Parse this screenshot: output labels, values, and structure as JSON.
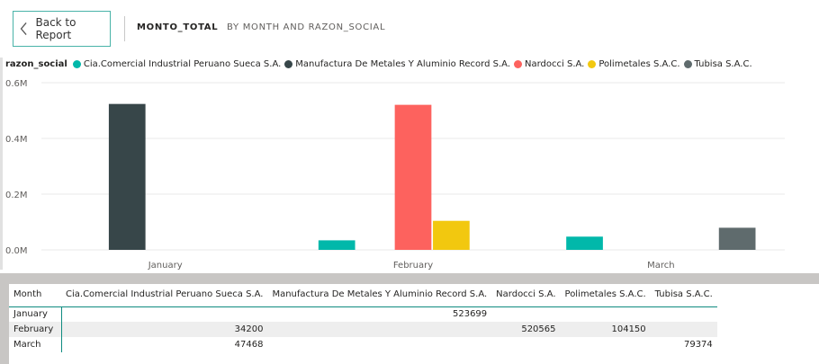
{
  "header": {
    "back_label": "Back to Report",
    "measure": "MONTO_TOTAL",
    "breakdown": "BY MONTH AND RAZON_SOCIAL"
  },
  "legend": {
    "title": "razon_social",
    "items": [
      {
        "label": "Cia.Comercial Industrial Peruano Sueca S.A.",
        "color": "#01b8aa"
      },
      {
        "label": "Manufactura De Metales Y Aluminio Record S.A.",
        "color": "#374649"
      },
      {
        "label": "Nardocci S.A.",
        "color": "#fd625e"
      },
      {
        "label": "Polimetales S.A.C.",
        "color": "#f2c80f"
      },
      {
        "label": "Tubisa S.A.C.",
        "color": "#5f6b6d"
      }
    ]
  },
  "chart_data": {
    "type": "bar",
    "categories": [
      "January",
      "February",
      "March"
    ],
    "series": [
      {
        "name": "Cia.Comercial Industrial Peruano Sueca S.A.",
        "color": "#01b8aa",
        "values": [
          null,
          34200,
          47468
        ]
      },
      {
        "name": "Manufactura De Metales Y Aluminio Record S.A.",
        "color": "#374649",
        "values": [
          523699,
          null,
          null
        ]
      },
      {
        "name": "Nardocci S.A.",
        "color": "#fd625e",
        "values": [
          null,
          520565,
          null
        ]
      },
      {
        "name": "Polimetales S.A.C.",
        "color": "#f2c80f",
        "values": [
          null,
          104150,
          null
        ]
      },
      {
        "name": "Tubisa S.A.C.",
        "color": "#5f6b6d",
        "values": [
          null,
          null,
          79374
        ]
      }
    ],
    "yticks": [
      "0.0M",
      "0.2M",
      "0.4M",
      "0.6M"
    ],
    "ylim": [
      0,
      600000
    ],
    "grid": true
  },
  "table": {
    "headers": [
      "Month",
      "Cia.Comercial Industrial Peruano Sueca S.A.",
      "Manufactura De Metales Y Aluminio Record S.A.",
      "Nardocci S.A.",
      "Polimetales S.A.C.",
      "Tubisa S.A.C."
    ],
    "rows": [
      [
        "January",
        "",
        "523699",
        "",
        "",
        ""
      ],
      [
        "February",
        "34200",
        "",
        "520565",
        "104150",
        ""
      ],
      [
        "March",
        "47468",
        "",
        "",
        "",
        "79374"
      ]
    ]
  }
}
